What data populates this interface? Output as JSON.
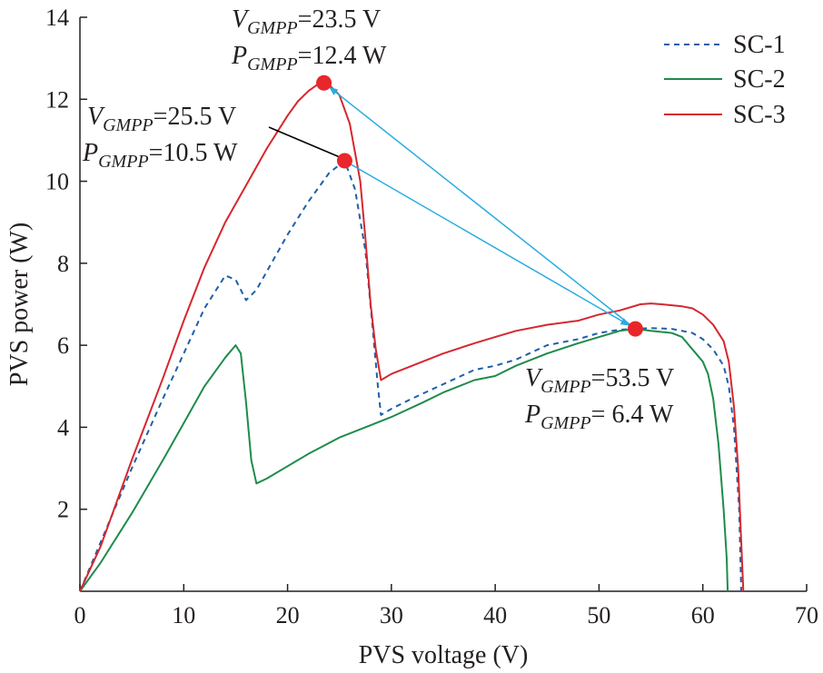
{
  "chart_data": {
    "type": "line",
    "xlabel": "PVS voltage (V)",
    "ylabel": "PVS power (W)",
    "xlim": [
      0,
      70
    ],
    "ylim": [
      0,
      14
    ],
    "xticks": [
      0,
      10,
      20,
      30,
      40,
      50,
      60,
      70
    ],
    "yticks": [
      2,
      4,
      6,
      8,
      10,
      12,
      14
    ],
    "grid": false,
    "legend_position": "top-right",
    "colors": {
      "arrow": "#29abe2",
      "marker": "#e8262b",
      "axis": "#231f20",
      "leader": "#000000"
    },
    "series": [
      {
        "name": "SC-1",
        "color": "#1f5fa8",
        "dash": "6,5",
        "points": [
          [
            0,
            0
          ],
          [
            2,
            1.2
          ],
          [
            5,
            3
          ],
          [
            8,
            4.7
          ],
          [
            10,
            5.8
          ],
          [
            12,
            6.9
          ],
          [
            14,
            7.7
          ],
          [
            15,
            7.6
          ],
          [
            15.5,
            7.35
          ],
          [
            16,
            7.1
          ],
          [
            17,
            7.35
          ],
          [
            18,
            7.8
          ],
          [
            20,
            8.7
          ],
          [
            22,
            9.5
          ],
          [
            24,
            10.2
          ],
          [
            25.5,
            10.5
          ],
          [
            26.5,
            9.8
          ],
          [
            27.5,
            8.3
          ],
          [
            28.2,
            6.4
          ],
          [
            28.7,
            5.0
          ],
          [
            29,
            4.3
          ],
          [
            30,
            4.45
          ],
          [
            32,
            4.7
          ],
          [
            35,
            5.05
          ],
          [
            38,
            5.4
          ],
          [
            40,
            5.5
          ],
          [
            42,
            5.65
          ],
          [
            45,
            6.0
          ],
          [
            48,
            6.15
          ],
          [
            50,
            6.3
          ],
          [
            52,
            6.38
          ],
          [
            53.5,
            6.4
          ],
          [
            55,
            6.42
          ],
          [
            57,
            6.4
          ],
          [
            59,
            6.3
          ],
          [
            60,
            6.15
          ],
          [
            61,
            5.9
          ],
          [
            62,
            5.5
          ],
          [
            62.5,
            5.0
          ],
          [
            63,
            4.0
          ],
          [
            63.5,
            2.0
          ],
          [
            63.7,
            0
          ]
        ]
      },
      {
        "name": "SC-2",
        "color": "#1f8b4c",
        "points": [
          [
            0,
            0
          ],
          [
            2,
            0.7
          ],
          [
            5,
            1.9
          ],
          [
            8,
            3.2
          ],
          [
            10,
            4.1
          ],
          [
            12,
            5.0
          ],
          [
            14,
            5.7
          ],
          [
            15,
            6.0
          ],
          [
            15.5,
            5.8
          ],
          [
            16,
            4.6
          ],
          [
            16.5,
            3.2
          ],
          [
            17,
            2.63
          ],
          [
            18,
            2.75
          ],
          [
            20,
            3.05
          ],
          [
            22,
            3.35
          ],
          [
            25,
            3.75
          ],
          [
            28,
            4.05
          ],
          [
            30,
            4.25
          ],
          [
            33,
            4.6
          ],
          [
            35,
            4.85
          ],
          [
            38,
            5.15
          ],
          [
            40,
            5.25
          ],
          [
            42,
            5.5
          ],
          [
            45,
            5.8
          ],
          [
            48,
            6.05
          ],
          [
            50,
            6.2
          ],
          [
            52,
            6.35
          ],
          [
            53.5,
            6.4
          ],
          [
            55,
            6.35
          ],
          [
            57,
            6.3
          ],
          [
            58,
            6.2
          ],
          [
            59,
            5.9
          ],
          [
            60,
            5.6
          ],
          [
            60.5,
            5.3
          ],
          [
            61,
            4.7
          ],
          [
            61.5,
            3.6
          ],
          [
            62,
            2.0
          ],
          [
            62.3,
            0.8
          ],
          [
            62.4,
            0
          ]
        ]
      },
      {
        "name": "SC-3",
        "color": "#d6272e",
        "points": [
          [
            0,
            0
          ],
          [
            2,
            1.1
          ],
          [
            5,
            3.2
          ],
          [
            8,
            5.2
          ],
          [
            10,
            6.6
          ],
          [
            12,
            7.9
          ],
          [
            14,
            9.0
          ],
          [
            16,
            9.9
          ],
          [
            18,
            10.8
          ],
          [
            20,
            11.6
          ],
          [
            21,
            11.95
          ],
          [
            22,
            12.2
          ],
          [
            23,
            12.38
          ],
          [
            23.5,
            12.4
          ],
          [
            24,
            12.35
          ],
          [
            25,
            12.1
          ],
          [
            26,
            11.4
          ],
          [
            27,
            10.0
          ],
          [
            27.5,
            8.6
          ],
          [
            28,
            7.0
          ],
          [
            28.5,
            5.9
          ],
          [
            29,
            5.15
          ],
          [
            30,
            5.3
          ],
          [
            32,
            5.5
          ],
          [
            35,
            5.8
          ],
          [
            38,
            6.05
          ],
          [
            40,
            6.2
          ],
          [
            42,
            6.35
          ],
          [
            45,
            6.5
          ],
          [
            48,
            6.6
          ],
          [
            50,
            6.75
          ],
          [
            52,
            6.85
          ],
          [
            54,
            7.0
          ],
          [
            55,
            7.02
          ],
          [
            56,
            7.0
          ],
          [
            58,
            6.95
          ],
          [
            59,
            6.9
          ],
          [
            60,
            6.75
          ],
          [
            61,
            6.5
          ],
          [
            62,
            6.1
          ],
          [
            62.5,
            5.6
          ],
          [
            63,
            4.5
          ],
          [
            63.4,
            3.0
          ],
          [
            63.7,
            1.2
          ],
          [
            63.9,
            0
          ]
        ]
      }
    ],
    "gmpp_points": [
      {
        "x": 23.5,
        "y": 12.4
      },
      {
        "x": 25.5,
        "y": 10.5
      },
      {
        "x": 53.5,
        "y": 6.4
      }
    ],
    "arrows": [
      {
        "from": [
          53.5,
          6.4
        ],
        "to": [
          23.5,
          12.4
        ]
      },
      {
        "from": [
          25.5,
          10.5
        ],
        "to": [
          53.5,
          6.4
        ]
      }
    ],
    "annotations": [
      {
        "v_text": "=23.5 V",
        "p_text": "=12.4 W"
      },
      {
        "v_text": "=25.5 V",
        "p_text": "=10.5 W"
      },
      {
        "v_text": "=53.5 V",
        "p_text": "= 6.4 W"
      }
    ],
    "anno_symbols": {
      "v": "V",
      "p": "P",
      "sub": "GMPP"
    }
  }
}
